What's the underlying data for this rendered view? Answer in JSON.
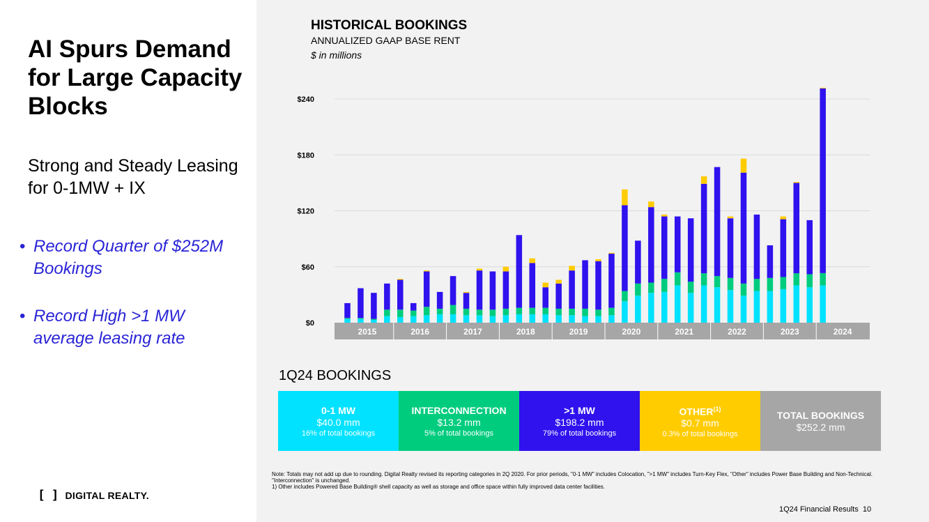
{
  "left": {
    "title": "AI Spurs Demand for Large Capacity Blocks",
    "subtitle": "Strong and Steady Leasing for 0-1MW + IX",
    "bullets": [
      "Record Quarter of $252M Bookings",
      "Record High >1 MW average leasing rate"
    ],
    "logo_mark": "[ ]",
    "logo_text": "DIGITAL REALTY."
  },
  "chart_data": {
    "type": "bar",
    "stacked": true,
    "title": "HISTORICAL BOOKINGS",
    "subtitle": "ANNUALIZED GAAP BASE RENT",
    "unit": "$ in millions",
    "ylim": [
      0,
      252
    ],
    "yticks": [
      0,
      60,
      120,
      180,
      240
    ],
    "ytick_labels": [
      "$0",
      "$60",
      "$120",
      "$180",
      "$240"
    ],
    "year_labels": [
      "2015",
      "2016",
      "2017",
      "2018",
      "2019",
      "2020",
      "2021",
      "2022",
      "2023",
      "2024"
    ],
    "quarters_per_year": 4,
    "colors": [
      "#00e2ff",
      "#00cc7e",
      "#2f12ee",
      "#ffcc00"
    ],
    "series": [
      {
        "name": "0-1 MW",
        "values": [
          4,
          4,
          3,
          7,
          6,
          7,
          8,
          9,
          9,
          8,
          8,
          7,
          8,
          9,
          9,
          9,
          8,
          8,
          7,
          7,
          8,
          23,
          29,
          32,
          33,
          40,
          32,
          40,
          38,
          35,
          29,
          34,
          34,
          36,
          40,
          38,
          40
        ]
      },
      {
        "name": "Interconnection",
        "values": [
          1,
          1,
          1,
          7,
          8,
          6,
          9,
          6,
          10,
          7,
          6,
          7,
          7,
          7,
          7,
          7,
          7,
          7,
          8,
          7,
          8,
          11,
          13,
          11,
          14,
          14,
          12,
          13,
          12,
          13,
          13,
          13,
          14,
          13,
          13,
          14,
          13.2
        ]
      },
      {
        "name": ">1 MW",
        "values": [
          16,
          32,
          28,
          28,
          32,
          8,
          38,
          18,
          31,
          17,
          42,
          41,
          40,
          78,
          48,
          22,
          27,
          41,
          52,
          52,
          58,
          92,
          46,
          81,
          67,
          60,
          68,
          96,
          117,
          64,
          119,
          69,
          35,
          62,
          97,
          58,
          198.2
        ]
      },
      {
        "name": "Other",
        "values": [
          0,
          0,
          0,
          0,
          1,
          0,
          1,
          0,
          0,
          1,
          2,
          0,
          5,
          0,
          5,
          5,
          4,
          5,
          0,
          2,
          1,
          17,
          0,
          6,
          2,
          0,
          0,
          8,
          0,
          2,
          15,
          0,
          0,
          3,
          1,
          0,
          0.7
        ]
      }
    ]
  },
  "bookings": {
    "title": "1Q24 BOOKINGS",
    "boxes": [
      {
        "label": "0-1 MW",
        "amount": "$40.0 mm",
        "pct": "16% of total bookings"
      },
      {
        "label": "INTERCONNECTION",
        "amount": "$13.2 mm",
        "pct": "5% of total bookings"
      },
      {
        "label": ">1 MW",
        "amount": "$198.2 mm",
        "pct": "79% of total bookings"
      },
      {
        "label": "OTHER",
        "sup": "(1)",
        "amount": "$0.7 mm",
        "pct": "0.3% of total bookings"
      },
      {
        "label": "TOTAL BOOKINGS",
        "amount": "$252.2 mm"
      }
    ]
  },
  "notes": {
    "line1": "Note: Totals may not add up due to rounding. Digital Realty revised its reporting categories in 2Q 2020. For prior periods, \"0-1 MW\" includes Colocation, \">1 MW\" includes Turn-Key Flex, \"Other\" includes Power Base Building and Non-Technical. \"Interconnection\" is unchanged.",
    "line2": "1)      Other includes Powered Base Building® shell capacity as well as storage and office space within fully improved data center facilities."
  },
  "footer": {
    "text": "1Q24 Financial Results",
    "page": "10"
  }
}
